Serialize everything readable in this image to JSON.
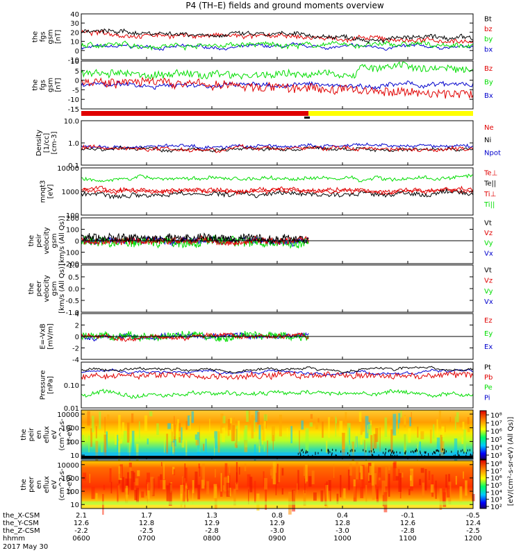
{
  "title": "P4 (TH–E) fields and ground moments overview",
  "colors": {
    "black": "#000000",
    "red": "#e00000",
    "green": "#00dd00",
    "blue": "#0000cc",
    "yellow": "#ffff00"
  },
  "chart_data": [
    {
      "type": "line",
      "ylabel": [
        "the",
        "fgs",
        "gsm",
        "[nT]"
      ],
      "ylim": [
        -10,
        40
      ],
      "ticks": [
        "40",
        "30",
        "20",
        "10",
        "0",
        "-10"
      ],
      "series": [
        {
          "name": "Bt",
          "color": "#000000"
        },
        {
          "name": "bz",
          "color": "#e00000"
        },
        {
          "name": "by",
          "color": "#00dd00"
        },
        {
          "name": "bx",
          "color": "#0000cc"
        }
      ]
    },
    {
      "type": "line",
      "ylabel": [
        "the",
        "fgs",
        "gsm",
        "[nT]"
      ],
      "ylim": [
        -15,
        10
      ],
      "ticks": [
        "10",
        "5",
        "0",
        "-5",
        "-10",
        "-15"
      ],
      "series": [
        {
          "name": "Bz",
          "color": "#e00000"
        },
        {
          "name": "By",
          "color": "#00dd00"
        },
        {
          "name": "Bx",
          "color": "#0000cc"
        }
      ]
    },
    {
      "type": "line",
      "ylabel": [
        "Density",
        "[1/cc]",
        "[cm-3]"
      ],
      "scale": "log",
      "ylim": [
        0.1,
        10
      ],
      "ticks": [
        "10.0",
        "1.0",
        "0.1"
      ],
      "series": [
        {
          "name": "Ne",
          "color": "#e00000"
        },
        {
          "name": "Ni",
          "color": "#000000"
        },
        {
          "name": "Npot",
          "color": "#0000cc"
        }
      ]
    },
    {
      "type": "line",
      "ylabel": [
        "mnqt3",
        "[eV]"
      ],
      "scale": "log",
      "ylim": [
        100,
        10000
      ],
      "ticks": [
        "10000",
        "1000",
        "100"
      ],
      "series": [
        {
          "name": "Te⊥",
          "color": "#e00000"
        },
        {
          "name": "Te||",
          "color": "#000000"
        },
        {
          "name": "Ti⊥",
          "color": "#e00000"
        },
        {
          "name": "Ti||",
          "color": "#00dd00"
        }
      ]
    },
    {
      "type": "line",
      "ylabel": [
        "the",
        "peir",
        "velocity",
        "gsm",
        "[km/s (All Qs)]"
      ],
      "ylim": [
        -200,
        200
      ],
      "ticks": [
        "200",
        "100",
        "0",
        "-100",
        "-200"
      ],
      "series": [
        {
          "name": "Vt",
          "color": "#000000"
        },
        {
          "name": "Vz",
          "color": "#e00000"
        },
        {
          "name": "Vy",
          "color": "#00dd00"
        },
        {
          "name": "Vx",
          "color": "#0000cc"
        }
      ]
    },
    {
      "type": "line",
      "ylabel": [
        "the",
        "peer",
        "velocity",
        "gsm",
        "[km/s (All Qs)]"
      ],
      "ylim": [
        -1,
        1
      ],
      "ticks": [
        "1.0",
        "0.5",
        "0.0",
        "-0.5",
        "-1.0"
      ],
      "series": [
        {
          "name": "Vt",
          "color": "#000000"
        },
        {
          "name": "Vz",
          "color": "#e00000"
        },
        {
          "name": "Vy",
          "color": "#00dd00"
        },
        {
          "name": "Vx",
          "color": "#0000cc"
        }
      ]
    },
    {
      "type": "line",
      "ylabel": [
        "E=-VxB",
        "[mV/m]"
      ],
      "ylim": [
        -4,
        4
      ],
      "ticks": [
        "4",
        "2",
        "0",
        "-2",
        "-4"
      ],
      "series": [
        {
          "name": "Ez",
          "color": "#e00000"
        },
        {
          "name": "Ey",
          "color": "#00dd00"
        },
        {
          "name": "Ex",
          "color": "#0000cc"
        }
      ]
    },
    {
      "type": "line",
      "ylabel": [
        "Pressure",
        "[nPa]"
      ],
      "scale": "log",
      "ylim": [
        0.01,
        1
      ],
      "ticks": [
        "0.10",
        "0.01"
      ],
      "series": [
        {
          "name": "Pt",
          "color": "#000000"
        },
        {
          "name": "Pb",
          "color": "#e00000"
        },
        {
          "name": "Pe",
          "color": "#00dd00"
        },
        {
          "name": "Pi",
          "color": "#0000cc"
        }
      ]
    },
    {
      "type": "heatmap",
      "ylabel": [
        "the",
        "peir",
        "en",
        "eflux",
        "eV",
        "(cm^2-s-",
        "sr-eV)"
      ],
      "scale": "log",
      "ylim": [
        5,
        20000
      ],
      "ticks": [
        "10000",
        "1000",
        "100",
        "10"
      ]
    },
    {
      "type": "heatmap",
      "ylabel": [
        "the",
        "peer",
        "en",
        "eflux",
        "eV",
        "(cm^2-s-",
        "sr-eV)"
      ],
      "scale": "log",
      "ylim": [
        5,
        20000
      ],
      "ticks": [
        "10000",
        "1000",
        "100",
        "10"
      ]
    }
  ],
  "colorbar": {
    "top_ticks": [
      "10⁸",
      "10⁷",
      "10⁶",
      "10⁵",
      "10⁴",
      "10³"
    ],
    "bottom_ticks": [
      "10⁸",
      "10⁷",
      "10⁶",
      "10⁵",
      "10⁴",
      "10³",
      "10²"
    ],
    "label": "[eV/(cm²-s-sr-eV) (All Qs)]"
  },
  "x_axis": {
    "row_labels": [
      "the_X-CSM",
      "the_Y-CSM",
      "the_Z-CSM",
      "hhmm",
      "2017 May 30"
    ],
    "x_csm": [
      "2.1",
      "1.7",
      "1.3",
      "0.8",
      "0.4",
      "-0.1",
      "-0.5"
    ],
    "y_csm": [
      "12.6",
      "12.8",
      "12.9",
      "12.9",
      "12.8",
      "12.6",
      "12.4"
    ],
    "z_csm": [
      "-2.2",
      "-2.5",
      "-2.8",
      "-3.0",
      "-3.0",
      "-2.8",
      "-2.5"
    ],
    "hhmm": [
      "0600",
      "0700",
      "0800",
      "0900",
      "1000",
      "1100",
      "1200"
    ]
  }
}
